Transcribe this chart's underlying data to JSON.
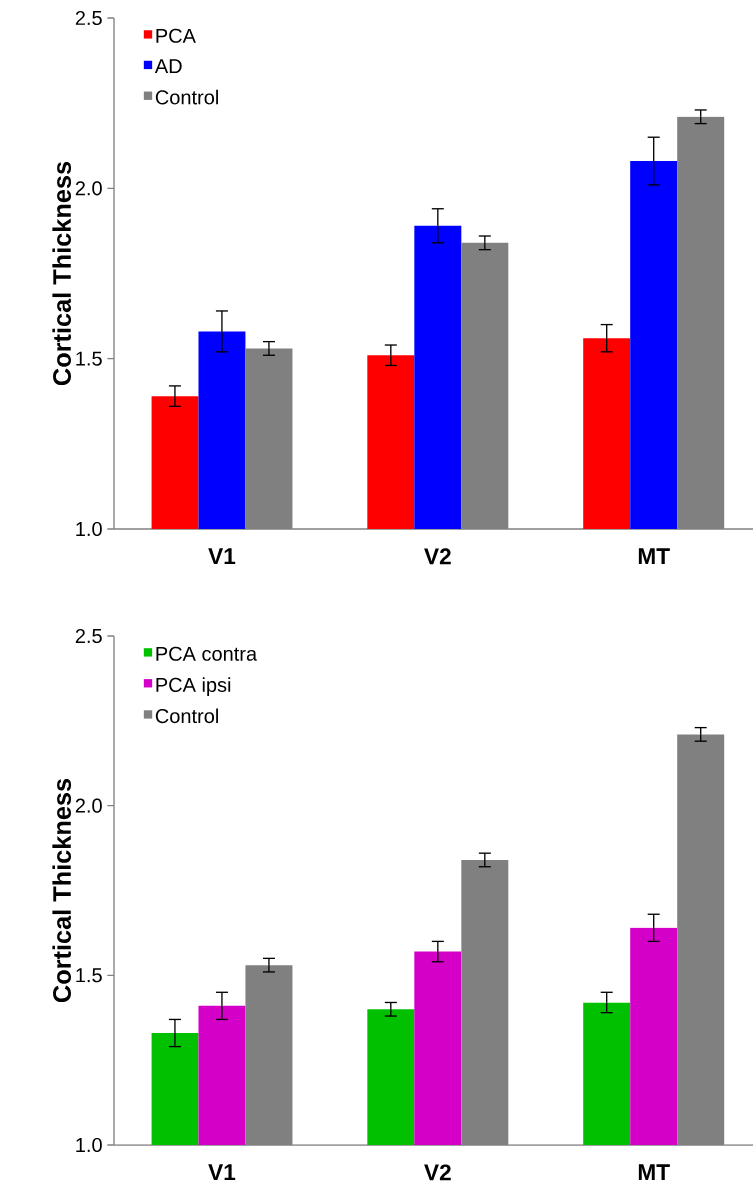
{
  "chart_data": [
    {
      "type": "bar",
      "ylabel": "Cortical Thickness",
      "categories": [
        "V1",
        "V2",
        "MT"
      ],
      "series": [
        {
          "name": "PCA",
          "color": "#ff0000",
          "values": [
            1.39,
            1.51,
            1.56
          ],
          "errors": [
            0.03,
            0.03,
            0.04
          ]
        },
        {
          "name": "AD",
          "color": "#0000ff",
          "values": [
            1.58,
            1.89,
            2.08
          ],
          "errors": [
            0.06,
            0.05,
            0.07
          ]
        },
        {
          "name": "Control",
          "color": "#808080",
          "values": [
            1.53,
            1.84,
            2.21
          ],
          "errors": [
            0.02,
            0.02,
            0.02
          ]
        }
      ],
      "ylim": [
        1.0,
        2.5
      ],
      "yticks": [
        {
          "value": 1.0,
          "label": "1.0"
        },
        {
          "value": 1.5,
          "label": "1.5"
        },
        {
          "value": 2.0,
          "label": "2.0"
        },
        {
          "value": 2.5,
          "label": "2.5"
        }
      ],
      "legend": "top left"
    },
    {
      "type": "bar",
      "ylabel": "Cortical Thickness",
      "categories": [
        "V1",
        "V2",
        "MT"
      ],
      "series": [
        {
          "name": "PCA contra",
          "color": "#00c000",
          "values": [
            1.33,
            1.4,
            1.42
          ],
          "errors": [
            0.04,
            0.02,
            0.03
          ]
        },
        {
          "name": "PCA ipsi",
          "color": "#d400c8",
          "values": [
            1.41,
            1.57,
            1.64
          ],
          "errors": [
            0.04,
            0.03,
            0.04
          ]
        },
        {
          "name": "Control",
          "color": "#808080",
          "values": [
            1.53,
            1.84,
            2.21
          ],
          "errors": [
            0.02,
            0.02,
            0.02
          ]
        }
      ],
      "ylim": [
        1.0,
        2.5
      ],
      "yticks": [
        {
          "value": 1.0,
          "label": "1.0"
        },
        {
          "value": 1.5,
          "label": "1.5"
        },
        {
          "value": 2.0,
          "label": "2.0"
        },
        {
          "value": 2.5,
          "label": "2.5"
        }
      ],
      "legend": "top left"
    }
  ]
}
